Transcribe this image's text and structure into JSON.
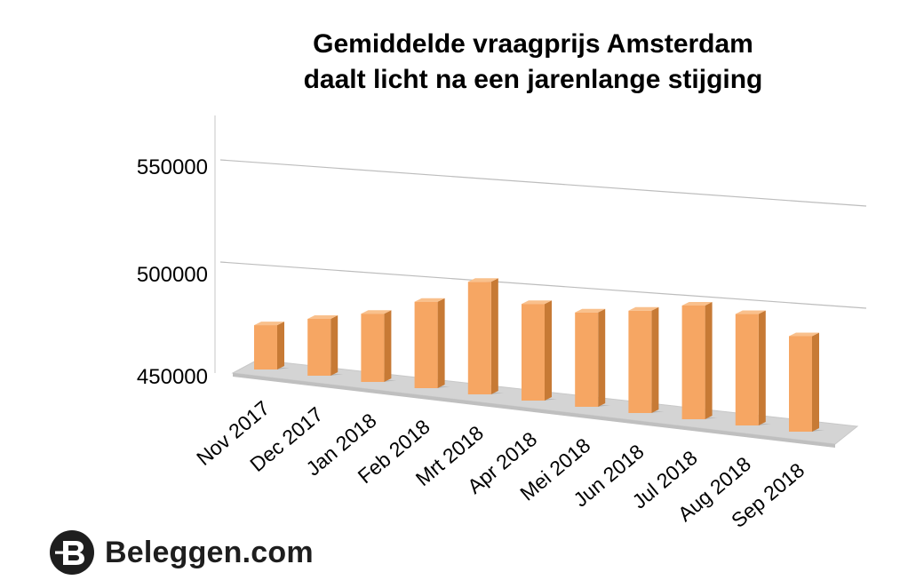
{
  "chart_data": {
    "type": "bar",
    "title_line1": "Gemiddelde vraagprijs Amsterdam",
    "title_line2": "daalt licht na een jarenlange stijging",
    "categories": [
      "Nov 2017",
      "Dec 2017",
      "Jan 2018",
      "Feb 2018",
      "Mrt 2018",
      "Apr 2018",
      "Mei 2018",
      "Jun 2018",
      "Jul 2018",
      "Aug 2018",
      "Sep 2018"
    ],
    "values": [
      489000,
      500000,
      510000,
      526000,
      549000,
      535000,
      533000,
      540000,
      550000,
      548000,
      534000
    ],
    "ylim": [
      450000,
      550000
    ],
    "yticks": [
      "450000",
      "500000",
      "550000"
    ],
    "grid": true,
    "bar_color": "#F6A663"
  },
  "brand": {
    "name": "Beleggen.com",
    "logo_icon": "beleggen-b-icon"
  }
}
